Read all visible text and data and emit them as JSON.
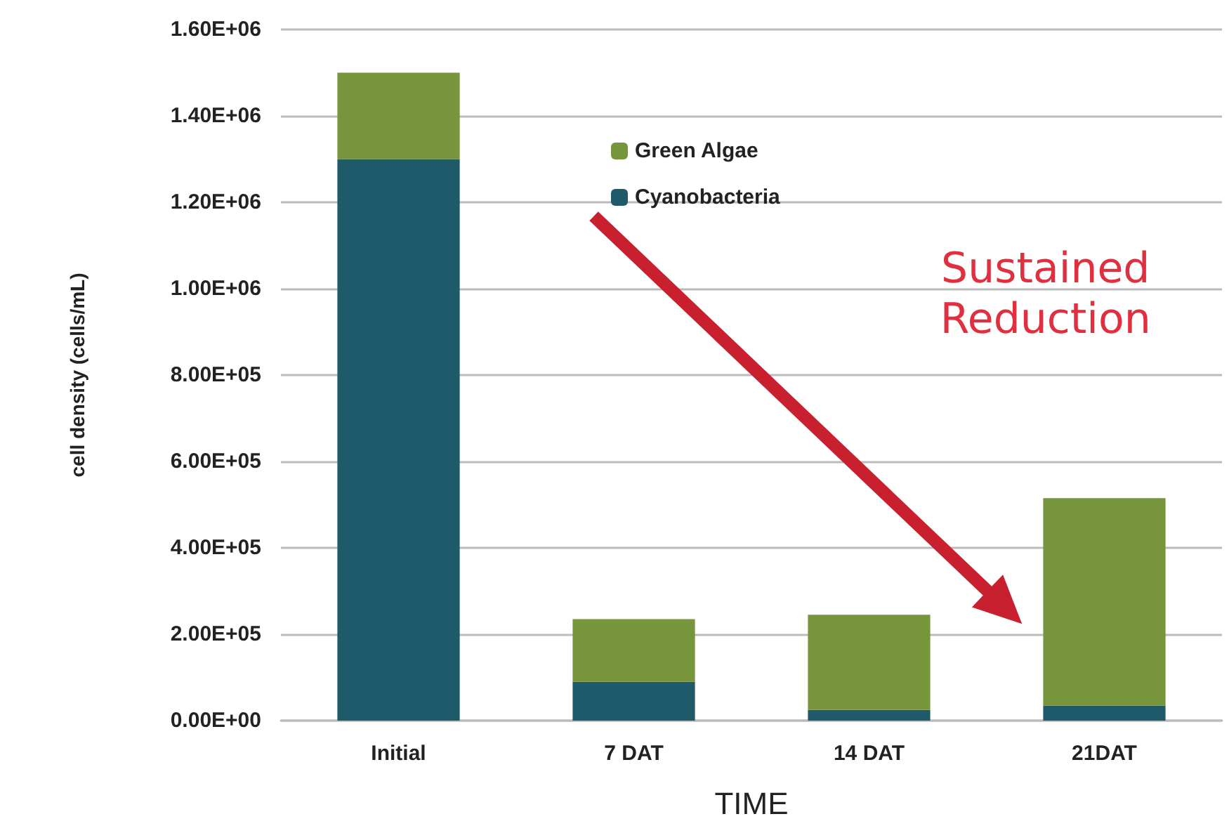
{
  "chart_data": {
    "type": "bar",
    "stacked": true,
    "xlabel": "TIME",
    "ylabel": "cell density (cells/mL)",
    "categories": [
      "Initial",
      "7 DAT",
      "14 DAT",
      "21DAT"
    ],
    "series": [
      {
        "name": "Cyanobacteria",
        "color": "#1f5a6a",
        "values": [
          1300000,
          90000,
          25000,
          35000
        ]
      },
      {
        "name": "Green Algae",
        "color": "#77963b",
        "values": [
          200000,
          145000,
          220000,
          480000
        ]
      }
    ],
    "ylim": [
      0,
      1600000
    ],
    "yticks": [
      {
        "value": 0,
        "label": "0.00E+00"
      },
      {
        "value": 200000,
        "label": "2.00E+05"
      },
      {
        "value": 400000,
        "label": "4.00E+05"
      },
      {
        "value": 600000,
        "label": "6.00E+05"
      },
      {
        "value": 800000,
        "label": "8.00E+05"
      },
      {
        "value": 1000000,
        "label": "1.00E+06"
      },
      {
        "value": 1200000,
        "label": "1.20E+06"
      },
      {
        "value": 1400000,
        "label": "1.40E+06"
      },
      {
        "value": 1600000,
        "label": "1.60E+06"
      }
    ],
    "grid": "y",
    "legend": "top",
    "annotations": [
      "Sustained Reduction"
    ]
  }
}
